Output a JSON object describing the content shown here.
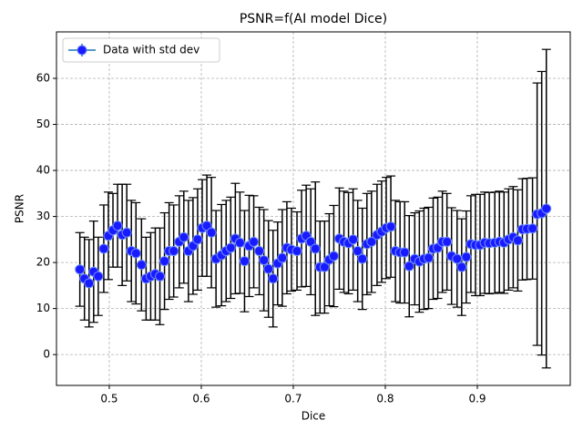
{
  "chart_data": {
    "type": "errorbar",
    "title": "PSNR=f(AI model Dice)",
    "xlabel": "Dice",
    "ylabel": "PSNR",
    "series": [
      {
        "name": "Data with std dev",
        "color": "#1a1aff",
        "line_color": "#1f77b4",
        "error_color": "#000000",
        "x": [
          0.468,
          0.473,
          0.478,
          0.483,
          0.488,
          0.494,
          0.499,
          0.504,
          0.509,
          0.514,
          0.519,
          0.524,
          0.529,
          0.535,
          0.54,
          0.545,
          0.55,
          0.555,
          0.56,
          0.565,
          0.57,
          0.576,
          0.581,
          0.586,
          0.591,
          0.596,
          0.601,
          0.606,
          0.611,
          0.616,
          0.622,
          0.627,
          0.632,
          0.637,
          0.642,
          0.647,
          0.652,
          0.657,
          0.663,
          0.668,
          0.673,
          0.678,
          0.683,
          0.688,
          0.693,
          0.698,
          0.704,
          0.709,
          0.714,
          0.719,
          0.724,
          0.729,
          0.734,
          0.739,
          0.744,
          0.75,
          0.755,
          0.76,
          0.765,
          0.77,
          0.775,
          0.78,
          0.785,
          0.791,
          0.796,
          0.801,
          0.806,
          0.811,
          0.816,
          0.821,
          0.826,
          0.832,
          0.837,
          0.842,
          0.847,
          0.852,
          0.857,
          0.862,
          0.867,
          0.872,
          0.878,
          0.883,
          0.888,
          0.893,
          0.898,
          0.903,
          0.908,
          0.913,
          0.919,
          0.924,
          0.929,
          0.934,
          0.939,
          0.944,
          0.949,
          0.954,
          0.96,
          0.965,
          0.97,
          0.975
        ],
        "values": [
          18.5,
          16.5,
          15.5,
          18,
          17,
          23,
          25.8,
          27,
          28,
          26,
          26.5,
          22.5,
          22,
          19.5,
          16.5,
          17,
          17.5,
          17,
          20.3,
          22.5,
          22.5,
          24.5,
          25.5,
          22.5,
          23.6,
          25,
          27.5,
          28,
          26.5,
          20.8,
          21.6,
          22.5,
          23.2,
          25.2,
          24.3,
          20.3,
          23.6,
          24.5,
          22.5,
          20.5,
          18.6,
          16.5,
          19.8,
          21,
          23.2,
          22.8,
          22.5,
          25.2,
          25.8,
          24.5,
          23,
          19,
          19,
          20.6,
          21.4,
          25.2,
          24.5,
          24.2,
          25,
          22.5,
          20.8,
          24,
          24.5,
          26,
          26.7,
          27.5,
          27.8,
          22.5,
          22.2,
          22.2,
          19.2,
          20.8,
          20.2,
          20.8,
          21,
          23,
          23.2,
          24.5,
          24.5,
          21.4,
          20.8,
          19,
          21.2,
          24,
          23.8,
          23.8,
          24.3,
          24.2,
          24.3,
          24.5,
          24.3,
          25,
          25.5,
          24.8,
          27.2,
          27.3,
          27.4,
          30.5,
          30.7,
          31.7
        ],
        "errors": [
          8,
          9,
          9.5,
          11,
          8.5,
          9.5,
          9.5,
          8,
          9,
          11,
          10.5,
          11,
          11,
          10,
          9,
          9.5,
          10,
          10.5,
          10.5,
          10.5,
          10,
          10,
          10,
          11,
          10.5,
          11,
          10.5,
          11,
          12,
          10.5,
          11,
          11,
          11,
          12,
          11,
          11,
          11,
          10,
          9.5,
          11,
          10.5,
          10.5,
          9,
          10.5,
          10,
          9,
          8.5,
          10.5,
          11,
          11.5,
          14.5,
          10,
          10,
          10,
          11,
          11,
          11,
          11,
          11,
          11,
          11,
          11,
          11,
          11,
          11,
          11,
          11,
          11,
          11,
          11,
          11,
          10,
          11,
          11,
          11,
          11,
          11,
          11,
          10.5,
          10.5,
          10.5,
          10.5,
          10,
          10.5,
          11,
          11,
          11,
          11,
          11,
          11,
          11,
          11,
          11,
          11,
          11,
          11,
          11,
          28.5,
          30.8,
          34.6
        ]
      }
    ],
    "xlim": [
      0.4426,
      1.001
    ],
    "xticks": [
      0.5,
      0.6,
      0.7,
      0.8,
      0.9
    ],
    "ylim": [
      -6.7,
      70.1
    ],
    "yticks": [
      0,
      10,
      20,
      30,
      40,
      50,
      60
    ],
    "grid": true,
    "legend": "upper-left"
  }
}
